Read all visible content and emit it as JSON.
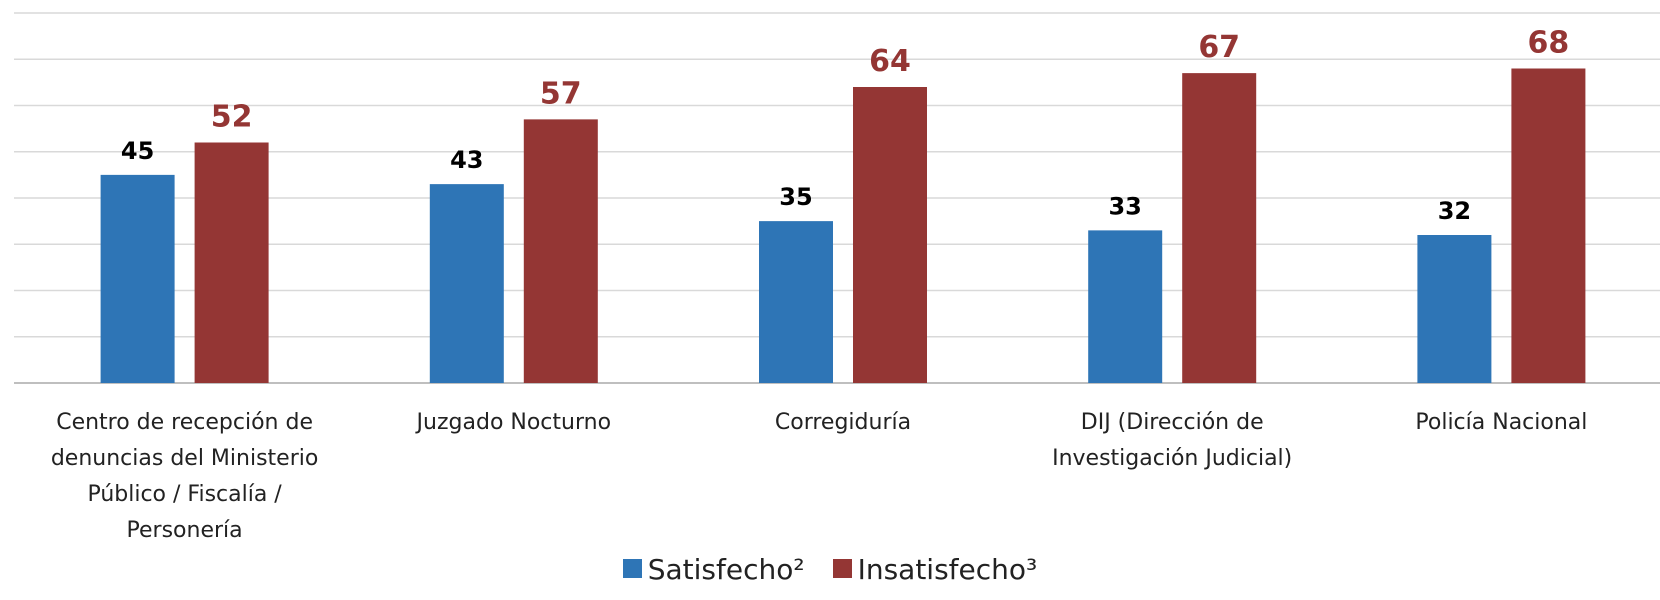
{
  "chart_data": {
    "type": "bar",
    "categories": [
      "Centro de recepción de denuncias del Ministerio Público / Fiscalía / Personería",
      "Juzgado Nocturno",
      "Corregiduría",
      "DIJ (Dirección de Investigación Judicial)",
      "Policía Nacional"
    ],
    "series": [
      {
        "name": "Satisfecho²",
        "color": "#2e75b6",
        "label_color": "#000000",
        "values": [
          45,
          43,
          35,
          33,
          32
        ]
      },
      {
        "name": "Insatisfecho³",
        "color": "#943634",
        "label_color": "#943634",
        "values": [
          52,
          57,
          64,
          67,
          68
        ]
      }
    ],
    "ylim": [
      0,
      80
    ],
    "yticks": [
      0,
      10,
      20,
      30,
      40,
      50,
      60,
      70,
      80
    ],
    "grid": true,
    "legend": "bottom"
  }
}
